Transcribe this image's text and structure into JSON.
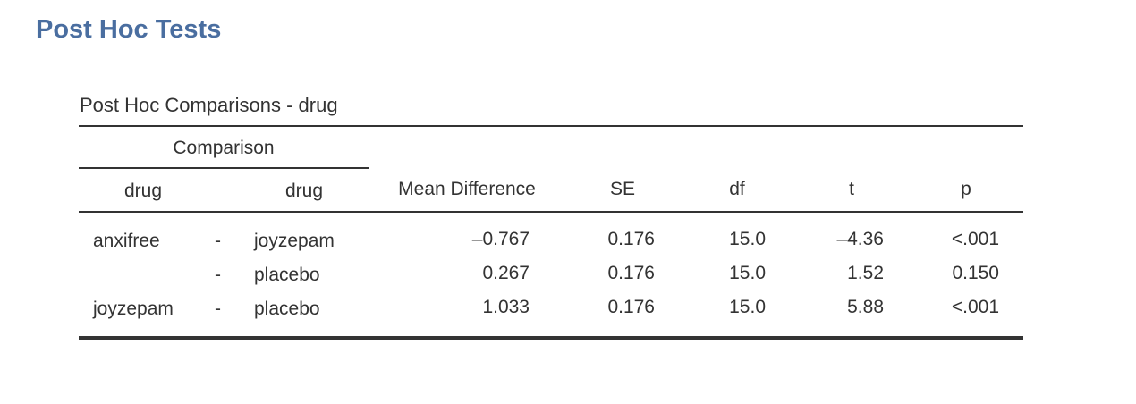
{
  "section": {
    "title": "Post Hoc Tests"
  },
  "table": {
    "title": "Post Hoc Comparisons - drug",
    "group_header": "Comparison",
    "headers": {
      "drug1": "drug",
      "drug2": "drug",
      "mean_difference": "Mean Difference",
      "se": "SE",
      "df": "df",
      "t": "t",
      "p": "p"
    },
    "rows": [
      {
        "drug1": "anxifree",
        "sep": "-",
        "drug2": "joyzepam",
        "mean_difference": "–0.767",
        "se": "0.176",
        "df": "15.0",
        "t": "–4.36",
        "p": "<.001"
      },
      {
        "drug1": "",
        "sep": "-",
        "drug2": "placebo",
        "mean_difference": "0.267",
        "se": "0.176",
        "df": "15.0",
        "t": "1.52",
        "p": "0.150"
      },
      {
        "drug1": "joyzepam",
        "sep": "-",
        "drug2": "placebo",
        "mean_difference": "1.033",
        "se": "0.176",
        "df": "15.0",
        "t": "5.88",
        "p": "<.001"
      }
    ]
  }
}
